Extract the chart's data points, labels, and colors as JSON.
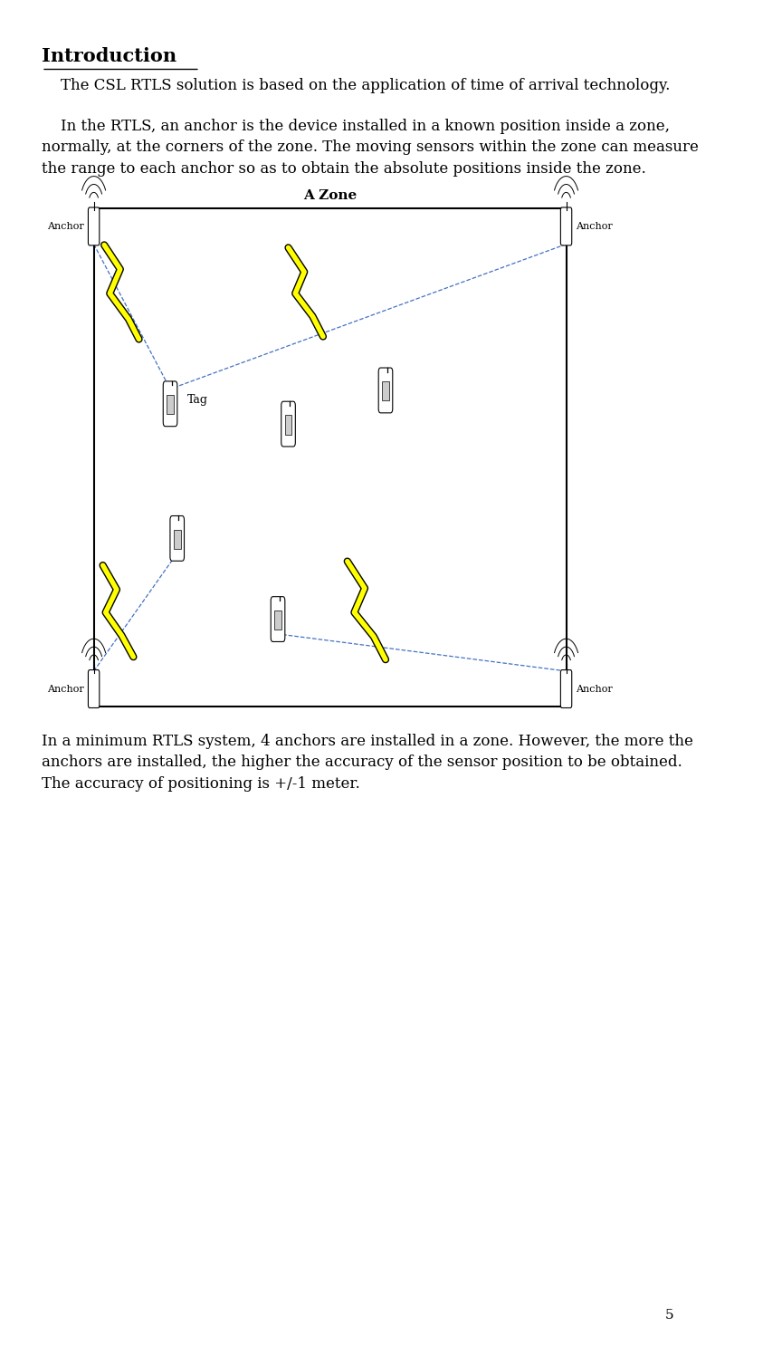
{
  "title": "Introduction",
  "para1": "    The CSL RTLS solution is based on the application of time of arrival technology.",
  "para2": "    In the RTLS, an anchor is the device installed in a known position inside a zone,\nnormally, at the corners of the zone. The moving sensors within the zone can measure\nthe range to each anchor so as to obtain the absolute positions inside the zone.",
  "para3": "In a minimum RTLS system, 4 anchors are installed in a zone. However, the more the\nanchors are installed, the higher the accuracy of the sensor position to be obtained.\nThe accuracy of positioning is +/-1 meter.",
  "zone_label": "A Zone",
  "anchor_label": "Anchor",
  "tag_label": "Tag",
  "page_number": "5",
  "bg_color": "#ffffff",
  "text_color": "#000000",
  "line_color": "#4472c4",
  "lightning_color": "#ffff00",
  "lightning_border": "#000000",
  "box_color": "#000000",
  "font_size_title": 15,
  "font_size_body": 12,
  "font_size_label": 9,
  "font_size_zone": 11,
  "font_size_page": 11
}
